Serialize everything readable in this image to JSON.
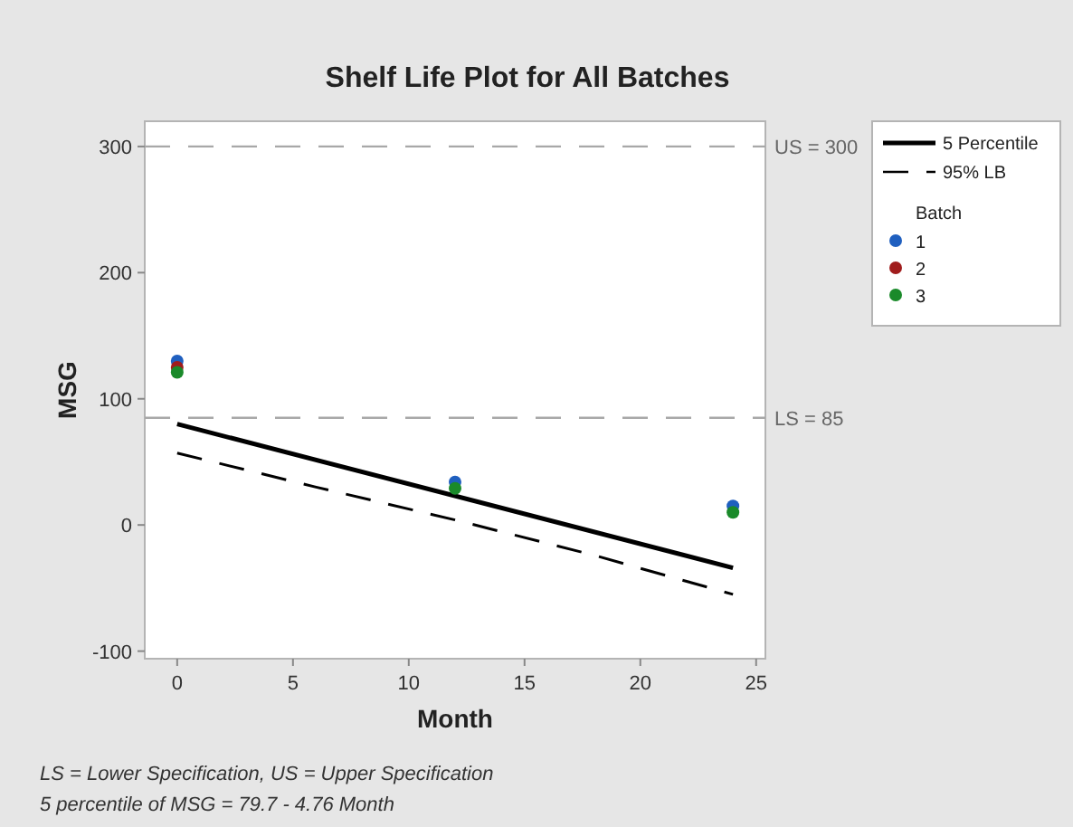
{
  "chart_data": {
    "type": "scatter",
    "title": "Shelf Life Plot for All Batches",
    "xlabel": "Month",
    "ylabel": "MSG",
    "legend_title": "Batch",
    "legend": "right",
    "xlim": [
      -1.4,
      25.4
    ],
    "ylim": [
      -106,
      320
    ],
    "xticks": [
      0,
      5,
      10,
      15,
      20,
      25
    ],
    "yticks": [
      -100,
      0,
      100,
      200,
      300
    ],
    "marker": "circle",
    "series": [
      {
        "name": "5 Percentile",
        "type": "line",
        "marker": "none",
        "color": "#000000",
        "line_style": "solid",
        "x": [
          0,
          24
        ],
        "values": [
          80,
          -34
        ]
      },
      {
        "name": "95% LB",
        "type": "line",
        "marker": "none",
        "color": "#000000",
        "line_style": "dashed",
        "x": [
          0,
          6,
          12,
          18,
          24
        ],
        "values": [
          57,
          30,
          4,
          -24,
          -55
        ]
      },
      {
        "name": "1",
        "color": "#1f5fbf",
        "x": [
          0,
          12,
          24
        ],
        "values": [
          130,
          34,
          15
        ]
      },
      {
        "name": "2",
        "color": "#a01c1c",
        "x": [
          0
        ],
        "values": [
          125
        ]
      },
      {
        "name": "3",
        "color": "#1a8a2a",
        "x": [
          0,
          12,
          24
        ],
        "values": [
          121,
          29,
          10
        ]
      }
    ],
    "ref_lines": [
      {
        "axis": "y",
        "value": 300,
        "label": "US = 300",
        "color": "#a8a8a8",
        "line_style": "dashed"
      },
      {
        "axis": "y",
        "value": 85,
        "label": "LS = 85",
        "color": "#a8a8a8",
        "line_style": "dashed"
      }
    ],
    "annotations": [
      "LS = Lower Specification, US = Upper Specification",
      "5 percentile of MSG = 79.7 - 4.76 Month"
    ]
  }
}
